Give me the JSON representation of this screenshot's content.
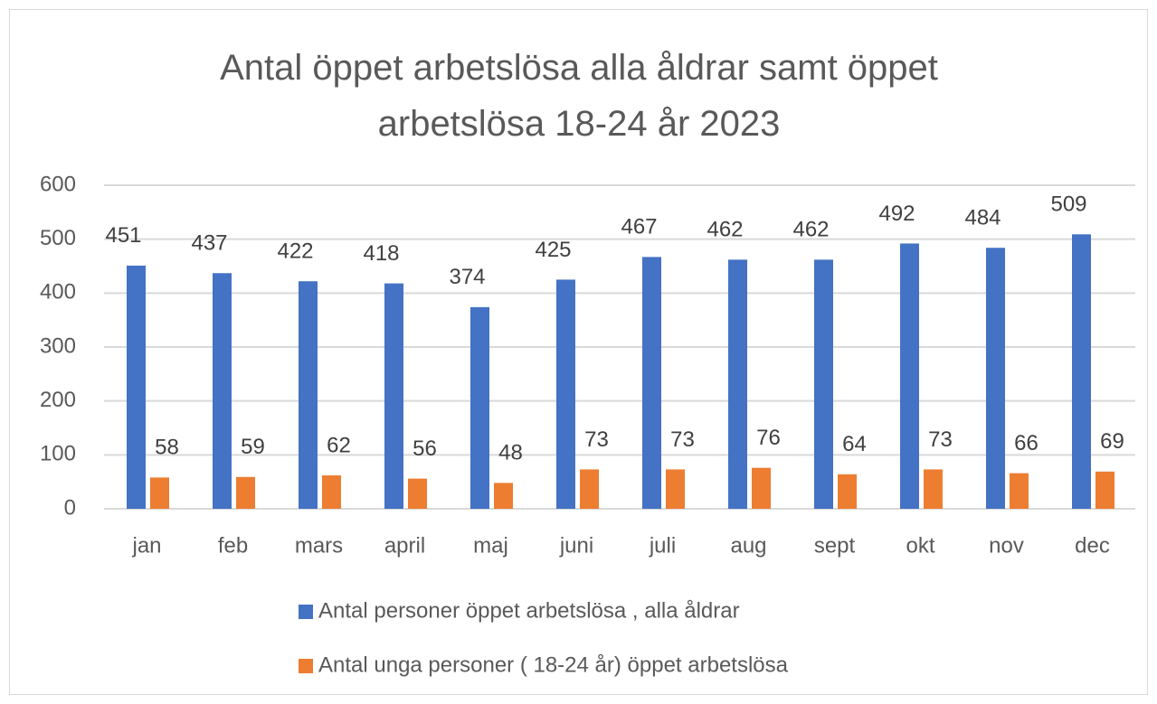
{
  "chart_data": {
    "type": "bar",
    "title": "Antal öppet arbetslösa alla åldrar samt öppet arbetslösa 18-24 år 2023",
    "categories": [
      "jan",
      "feb",
      "mars",
      "april",
      "maj",
      "juni",
      "juli",
      "aug",
      "sept",
      "okt",
      "nov",
      "dec"
    ],
    "series": [
      {
        "name": "Antal personer öppet arbetslösa , alla åldrar",
        "color": "#4472c4",
        "values": [
          451,
          437,
          422,
          418,
          374,
          425,
          467,
          462,
          462,
          492,
          484,
          509
        ]
      },
      {
        "name": "Antal unga personer ( 18-24 år) öppet arbetslösa",
        "color": "#ed7d31",
        "values": [
          58,
          59,
          62,
          56,
          48,
          73,
          73,
          76,
          64,
          73,
          66,
          69
        ]
      }
    ],
    "ylim": [
      0,
      600
    ],
    "yticks": [
      0,
      100,
      200,
      300,
      400,
      500,
      600
    ],
    "grid": true,
    "legend": "bottom"
  }
}
